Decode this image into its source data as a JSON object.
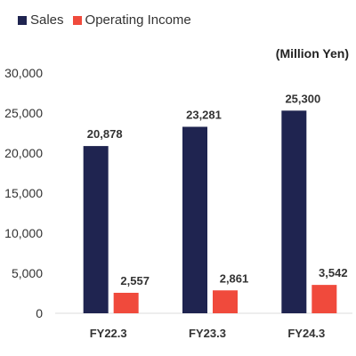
{
  "legend": {
    "sales_label": "Sales",
    "oi_label": "Operating Income"
  },
  "unit_label": "(Million Yen)",
  "colors": {
    "sales": "#1f2450",
    "operating_income": "#f04a3c",
    "grid": "#dddddd"
  },
  "chart_data": {
    "type": "bar",
    "categories": [
      "FY22.3",
      "FY23.3",
      "FY24.3"
    ],
    "series": [
      {
        "name": "Sales",
        "values": [
          20878,
          23281,
          25300
        ],
        "labels": [
          "20,878",
          "23,281",
          "25,300"
        ]
      },
      {
        "name": "Operating Income",
        "values": [
          2557,
          2861,
          3542
        ],
        "labels": [
          "2,557",
          "2,861",
          "3,542"
        ]
      }
    ],
    "y_ticks": [
      0,
      5000,
      10000,
      15000,
      20000,
      25000,
      30000
    ],
    "y_tick_labels": [
      "0",
      "5,000",
      "10,000",
      "15,000",
      "20,000",
      "25,000",
      "30,000"
    ],
    "ylim": [
      0,
      30000
    ],
    "grid": false,
    "legend_position": "top-left"
  }
}
